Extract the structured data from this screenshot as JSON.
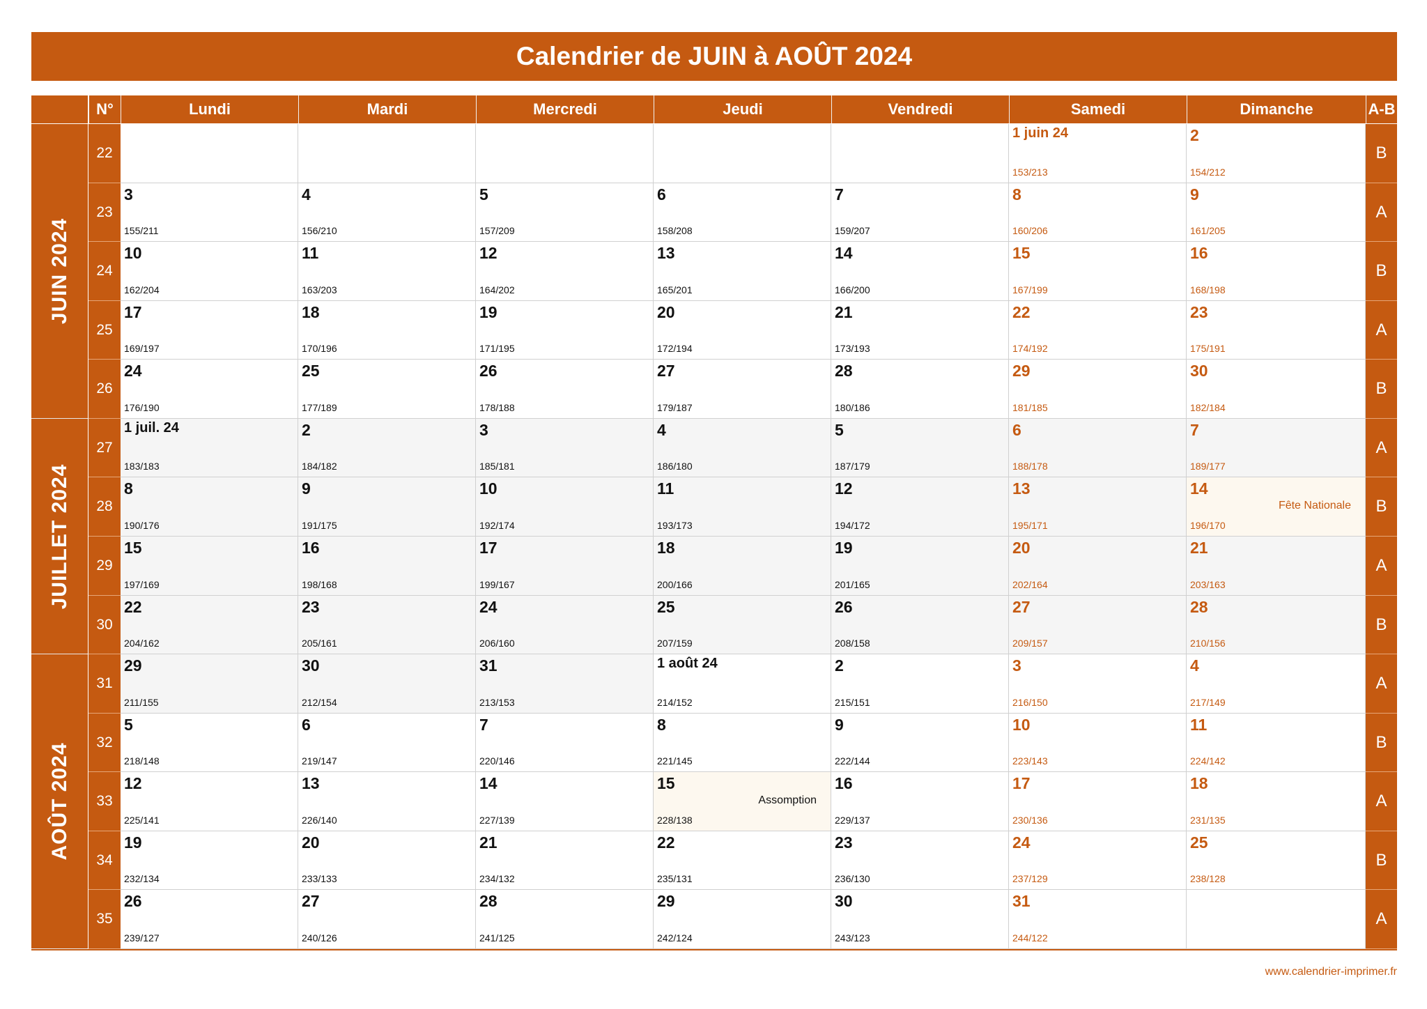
{
  "title": "Calendrier de JUIN à AOÛT 2024",
  "headers": {
    "number": "N°",
    "days": [
      "Lundi",
      "Mardi",
      "Mercredi",
      "Jeudi",
      "Vendredi",
      "Samedi",
      "Dimanche"
    ],
    "ab": "A-B"
  },
  "months": [
    {
      "label": "JUIN 2024"
    },
    {
      "label": "JUILLET 2024"
    },
    {
      "label": "AOÛT 2024"
    }
  ],
  "weeks": [
    {
      "num": "22",
      "ab": "B",
      "days": [
        null,
        null,
        null,
        null,
        null,
        {
          "d": "1 juin 24",
          "c": "153/213"
        },
        {
          "d": "2",
          "c": "154/212"
        }
      ]
    },
    {
      "num": "23",
      "ab": "A",
      "days": [
        {
          "d": "3",
          "c": "155/211"
        },
        {
          "d": "4",
          "c": "156/210"
        },
        {
          "d": "5",
          "c": "157/209"
        },
        {
          "d": "6",
          "c": "158/208"
        },
        {
          "d": "7",
          "c": "159/207"
        },
        {
          "d": "8",
          "c": "160/206"
        },
        {
          "d": "9",
          "c": "161/205"
        }
      ]
    },
    {
      "num": "24",
      "ab": "B",
      "days": [
        {
          "d": "10",
          "c": "162/204"
        },
        {
          "d": "11",
          "c": "163/203"
        },
        {
          "d": "12",
          "c": "164/202"
        },
        {
          "d": "13",
          "c": "165/201"
        },
        {
          "d": "14",
          "c": "166/200"
        },
        {
          "d": "15",
          "c": "167/199"
        },
        {
          "d": "16",
          "c": "168/198"
        }
      ]
    },
    {
      "num": "25",
      "ab": "A",
      "days": [
        {
          "d": "17",
          "c": "169/197"
        },
        {
          "d": "18",
          "c": "170/196"
        },
        {
          "d": "19",
          "c": "171/195"
        },
        {
          "d": "20",
          "c": "172/194"
        },
        {
          "d": "21",
          "c": "173/193"
        },
        {
          "d": "22",
          "c": "174/192"
        },
        {
          "d": "23",
          "c": "175/191"
        }
      ]
    },
    {
      "num": "26",
      "ab": "B",
      "days": [
        {
          "d": "24",
          "c": "176/190"
        },
        {
          "d": "25",
          "c": "177/189"
        },
        {
          "d": "26",
          "c": "178/188"
        },
        {
          "d": "27",
          "c": "179/187"
        },
        {
          "d": "28",
          "c": "180/186"
        },
        {
          "d": "29",
          "c": "181/185"
        },
        {
          "d": "30",
          "c": "182/184"
        }
      ]
    },
    {
      "num": "27",
      "ab": "A",
      "days": [
        {
          "d": "1 juil. 24",
          "c": "183/183",
          "m": 1
        },
        {
          "d": "2",
          "c": "184/182",
          "m": 1
        },
        {
          "d": "3",
          "c": "185/181",
          "m": 1
        },
        {
          "d": "4",
          "c": "186/180",
          "m": 1
        },
        {
          "d": "5",
          "c": "187/179",
          "m": 1
        },
        {
          "d": "6",
          "c": "188/178",
          "m": 1
        },
        {
          "d": "7",
          "c": "189/177",
          "m": 1
        }
      ]
    },
    {
      "num": "28",
      "ab": "B",
      "days": [
        {
          "d": "8",
          "c": "190/176",
          "m": 1
        },
        {
          "d": "9",
          "c": "191/175",
          "m": 1
        },
        {
          "d": "10",
          "c": "192/174",
          "m": 1
        },
        {
          "d": "11",
          "c": "193/173",
          "m": 1
        },
        {
          "d": "12",
          "c": "194/172",
          "m": 1
        },
        {
          "d": "13",
          "c": "195/171",
          "m": 1
        },
        {
          "d": "14",
          "c": "196/170",
          "m": 1,
          "h": "Fête Nationale"
        }
      ]
    },
    {
      "num": "29",
      "ab": "A",
      "days": [
        {
          "d": "15",
          "c": "197/169",
          "m": 1
        },
        {
          "d": "16",
          "c": "198/168",
          "m": 1
        },
        {
          "d": "17",
          "c": "199/167",
          "m": 1
        },
        {
          "d": "18",
          "c": "200/166",
          "m": 1
        },
        {
          "d": "19",
          "c": "201/165",
          "m": 1
        },
        {
          "d": "20",
          "c": "202/164",
          "m": 1
        },
        {
          "d": "21",
          "c": "203/163",
          "m": 1
        }
      ]
    },
    {
      "num": "30",
      "ab": "B",
      "days": [
        {
          "d": "22",
          "c": "204/162",
          "m": 1
        },
        {
          "d": "23",
          "c": "205/161",
          "m": 1
        },
        {
          "d": "24",
          "c": "206/160",
          "m": 1
        },
        {
          "d": "25",
          "c": "207/159",
          "m": 1
        },
        {
          "d": "26",
          "c": "208/158",
          "m": 1
        },
        {
          "d": "27",
          "c": "209/157",
          "m": 1
        },
        {
          "d": "28",
          "c": "210/156",
          "m": 1
        }
      ]
    },
    {
      "num": "31",
      "ab": "A",
      "days": [
        {
          "d": "29",
          "c": "211/155",
          "m": 1
        },
        {
          "d": "30",
          "c": "212/154",
          "m": 1
        },
        {
          "d": "31",
          "c": "213/153",
          "m": 1
        },
        {
          "d": "1 août 24",
          "c": "214/152"
        },
        {
          "d": "2",
          "c": "215/151"
        },
        {
          "d": "3",
          "c": "216/150"
        },
        {
          "d": "4",
          "c": "217/149"
        }
      ]
    },
    {
      "num": "32",
      "ab": "B",
      "days": [
        {
          "d": "5",
          "c": "218/148"
        },
        {
          "d": "6",
          "c": "219/147"
        },
        {
          "d": "7",
          "c": "220/146"
        },
        {
          "d": "8",
          "c": "221/145"
        },
        {
          "d": "9",
          "c": "222/144"
        },
        {
          "d": "10",
          "c": "223/143"
        },
        {
          "d": "11",
          "c": "224/142"
        }
      ]
    },
    {
      "num": "33",
      "ab": "A",
      "days": [
        {
          "d": "12",
          "c": "225/141"
        },
        {
          "d": "13",
          "c": "226/140"
        },
        {
          "d": "14",
          "c": "227/139"
        },
        {
          "d": "15",
          "c": "228/138",
          "h": "Assomption"
        },
        {
          "d": "16",
          "c": "229/137"
        },
        {
          "d": "17",
          "c": "230/136"
        },
        {
          "d": "18",
          "c": "231/135"
        }
      ]
    },
    {
      "num": "34",
      "ab": "B",
      "days": [
        {
          "d": "19",
          "c": "232/134"
        },
        {
          "d": "20",
          "c": "233/133"
        },
        {
          "d": "21",
          "c": "234/132"
        },
        {
          "d": "22",
          "c": "235/131"
        },
        {
          "d": "23",
          "c": "236/130"
        },
        {
          "d": "24",
          "c": "237/129"
        },
        {
          "d": "25",
          "c": "238/128"
        }
      ]
    },
    {
      "num": "35",
      "ab": "A",
      "days": [
        {
          "d": "26",
          "c": "239/127"
        },
        {
          "d": "27",
          "c": "240/126"
        },
        {
          "d": "28",
          "c": "241/125"
        },
        {
          "d": "29",
          "c": "242/124"
        },
        {
          "d": "30",
          "c": "243/123"
        },
        {
          "d": "31",
          "c": "244/122"
        },
        null
      ]
    }
  ],
  "website": "www.calendrier-imprimer.fr",
  "colors": {
    "accent": "#c55a11",
    "shade": "#f5f5f5",
    "holiday": "#fdf8ef"
  }
}
